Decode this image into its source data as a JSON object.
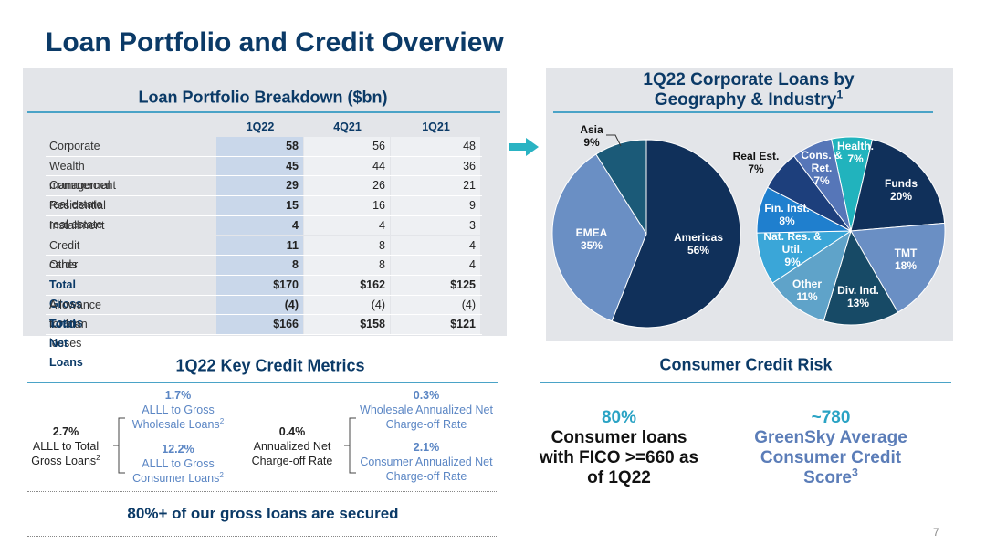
{
  "title": "Loan Portfolio and Credit Overview",
  "table": {
    "title": "Loan Portfolio Breakdown ($bn)",
    "columns": [
      "1Q22",
      "4Q21",
      "1Q21"
    ],
    "rows": [
      {
        "label": "Corporate",
        "values": [
          "58",
          "56",
          "48"
        ]
      },
      {
        "label": "Wealth management",
        "values": [
          "45",
          "44",
          "36"
        ]
      },
      {
        "label": "Commercial real estate",
        "values": [
          "29",
          "26",
          "21"
        ]
      },
      {
        "label": "Residential real estate",
        "values": [
          "15",
          "16",
          "9"
        ]
      },
      {
        "label": "Installment",
        "values": [
          "4",
          "4",
          "3"
        ]
      },
      {
        "label": "Credit cards",
        "values": [
          "11",
          "8",
          "4"
        ]
      },
      {
        "label": "Other",
        "values": [
          "8",
          "8",
          "4"
        ]
      },
      {
        "label": "Total Gross Loans",
        "values": [
          "$170",
          "$162",
          "$125"
        ],
        "bold": true
      },
      {
        "label": "Allowance for loan losses",
        "values": [
          "(4)",
          "(4)",
          "(4)"
        ]
      },
      {
        "label": "Total Net Loans",
        "values": [
          "$166",
          "$158",
          "$121"
        ],
        "bold": true
      }
    ]
  },
  "pies_title": "1Q22 Corporate Loans by Geography & Industry",
  "pies_title_note": "1",
  "chart_data": [
    {
      "type": "pie",
      "categories": [
        "Americas",
        "EMEA",
        "Asia"
      ],
      "values": [
        56,
        35,
        9
      ],
      "value_labels": [
        "56%",
        "35%",
        "9%"
      ],
      "colors": [
        "#10305a",
        "#6a8fc4",
        "#1b5a78"
      ]
    },
    {
      "type": "pie",
      "categories": [
        "Health.",
        "Funds",
        "TMT",
        "Div. Ind.",
        "Other",
        "Nat. Res. & Util.",
        "Fin. Inst.",
        "Real Est.",
        "Cons. & Ret."
      ],
      "values": [
        7,
        20,
        18,
        13,
        11,
        9,
        8,
        7,
        7
      ],
      "value_labels": [
        "7%",
        "20%",
        "18%",
        "13%",
        "11%",
        "9%",
        "8%",
        "7%",
        "7%"
      ],
      "colors": [
        "#21b3bd",
        "#10305a",
        "#6a8fc4",
        "#174a66",
        "#5fa3c9",
        "#3aa6d8",
        "#1f7fce",
        "#1d3f7c",
        "#5676b8"
      ]
    }
  ],
  "metrics": {
    "title": "1Q22 Key Credit Metrics",
    "total": {
      "value": "2.7%",
      "label": "ALLL to Total Gross Loans",
      "note": "2"
    },
    "wholesale_alll": {
      "value": "1.7%",
      "label": "ALLL to Gross Wholesale Loans",
      "note": "2"
    },
    "consumer_alll": {
      "value": "12.2%",
      "label": "ALLL to Gross Consumer Loans",
      "note": "2"
    },
    "nco": {
      "value": "0.4%",
      "label": "Annualized Net Charge-off Rate"
    },
    "wholesale_nco": {
      "value": "0.3%",
      "label": "Wholesale Annualized Net Charge-off Rate"
    },
    "consumer_nco": {
      "value": "2.1%",
      "label": "Consumer Annualized Net Charge-off Rate"
    },
    "footer": "80%+ of our gross loans are secured"
  },
  "consumer": {
    "title": "Consumer Credit Risk",
    "fico": {
      "value": "80%",
      "label": "Consumer loans with FICO >=660 as of 1Q22"
    },
    "score": {
      "value": "~780",
      "label": "GreenSky Average Consumer Credit Score",
      "note": "3"
    }
  },
  "page_number": "7"
}
